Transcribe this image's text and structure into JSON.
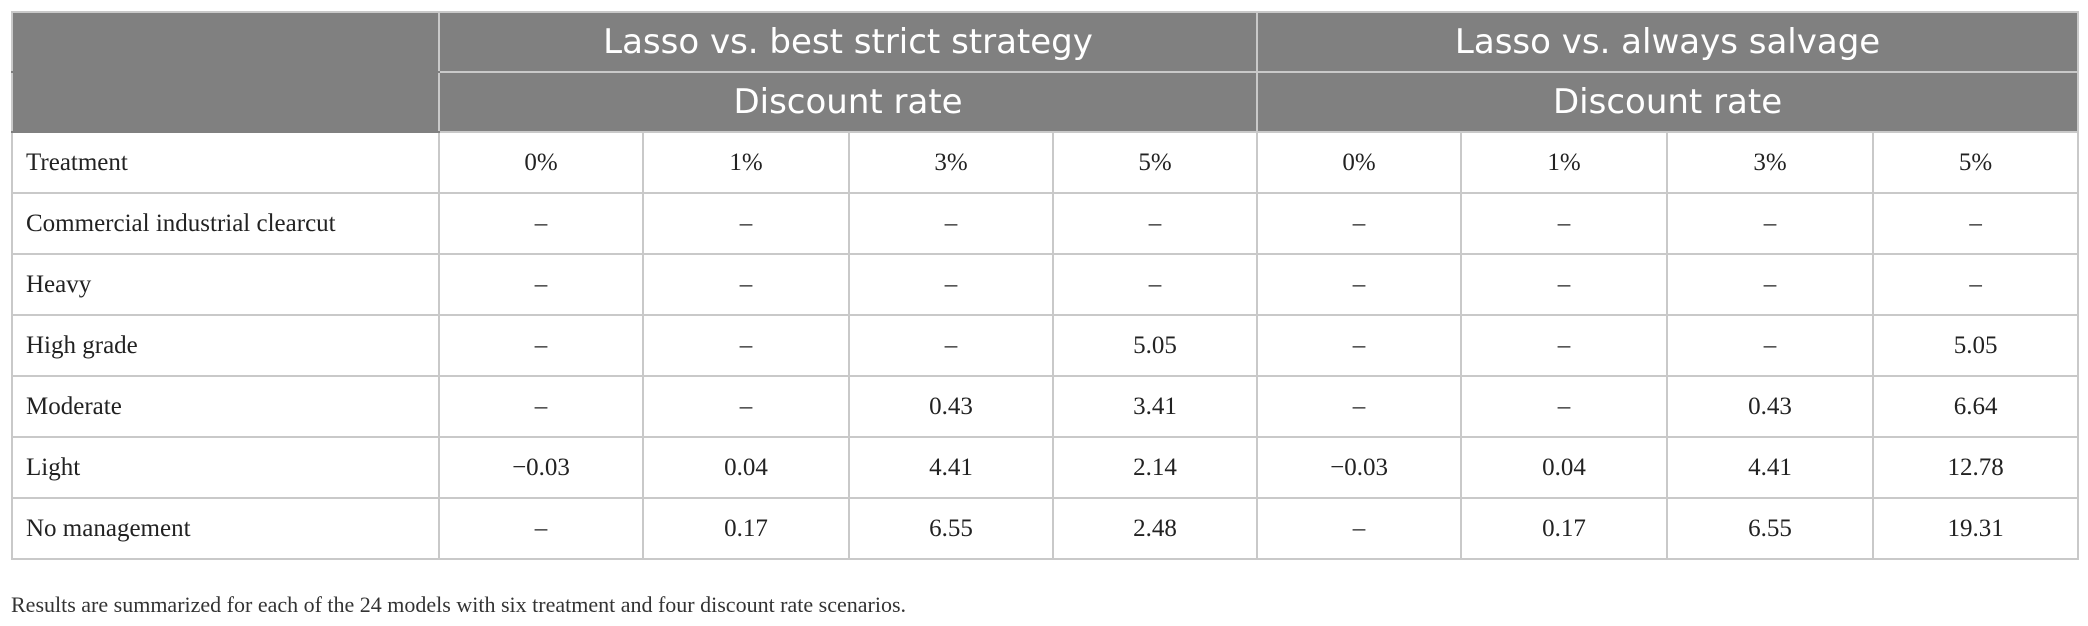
{
  "table": {
    "group_headers": [
      "Lasso vs. best strict strategy",
      "Lasso vs. always salvage"
    ],
    "sub_headers": [
      "Discount rate",
      "Discount rate"
    ],
    "column_headers": [
      "Treatment",
      "0%",
      "1%",
      "3%",
      "5%",
      "0%",
      "1%",
      "3%",
      "5%"
    ],
    "rows": [
      {
        "label": "Commercial industrial clearcut",
        "cells": [
          "–",
          "–",
          "–",
          "–",
          "–",
          "–",
          "–",
          "–"
        ]
      },
      {
        "label": "Heavy",
        "cells": [
          "–",
          "–",
          "–",
          "–",
          "–",
          "–",
          "–",
          "–"
        ]
      },
      {
        "label": "High grade",
        "cells": [
          "–",
          "–",
          "–",
          "5.05",
          "–",
          "–",
          "–",
          "5.05"
        ]
      },
      {
        "label": "Moderate",
        "cells": [
          "–",
          "–",
          "0.43",
          "3.41",
          "–",
          "–",
          "0.43",
          "6.64"
        ]
      },
      {
        "label": "Light",
        "cells": [
          "−0.03",
          "0.04",
          "4.41",
          "2.14",
          "−0.03",
          "0.04",
          "4.41",
          "12.78"
        ]
      },
      {
        "label": "No management",
        "cells": [
          "–",
          "0.17",
          "6.55",
          "2.48",
          "–",
          "0.17",
          "6.55",
          "19.31"
        ]
      }
    ]
  },
  "footnote": "Results are summarized for each of the 24 models with six treatment and four discount rate scenarios."
}
